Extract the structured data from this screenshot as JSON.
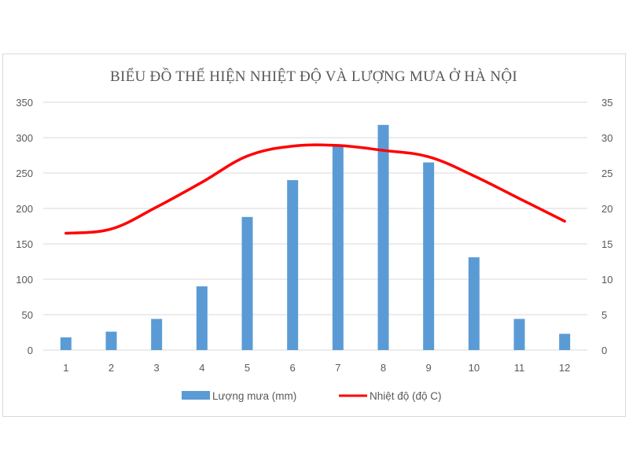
{
  "chart_data": {
    "type": "bar+line",
    "title": "BIỂU ĐỒ  THỂ HIỆN NHIỆT ĐỘ VÀ LƯỢNG MƯA Ở HÀ NỘI",
    "categories": [
      "1",
      "2",
      "3",
      "4",
      "5",
      "6",
      "7",
      "8",
      "9",
      "10",
      "11",
      "12"
    ],
    "series": [
      {
        "name": "Lượng mưa (mm)",
        "type": "bar",
        "axis": "left",
        "color": "#5b9bd5",
        "values": [
          18,
          26,
          44,
          90,
          188,
          240,
          288,
          318,
          265,
          131,
          44,
          23
        ]
      },
      {
        "name": "Nhiệt độ (độ C)",
        "type": "line",
        "axis": "right",
        "color": "#ff0000",
        "values": [
          16.5,
          17.1,
          20.2,
          23.7,
          27.4,
          28.8,
          28.9,
          28.2,
          27.3,
          24.6,
          21.4,
          18.2
        ]
      }
    ],
    "y_left": {
      "min": 0,
      "max": 350,
      "step": 50,
      "ticks": [
        "0",
        "50",
        "100",
        "150",
        "200",
        "250",
        "300",
        "350"
      ]
    },
    "y_right": {
      "min": 0,
      "max": 35,
      "step": 5,
      "ticks": [
        "0",
        "5",
        "10",
        "15",
        "20",
        "25",
        "30",
        "35"
      ]
    },
    "grid": true,
    "legend": "bottom"
  }
}
